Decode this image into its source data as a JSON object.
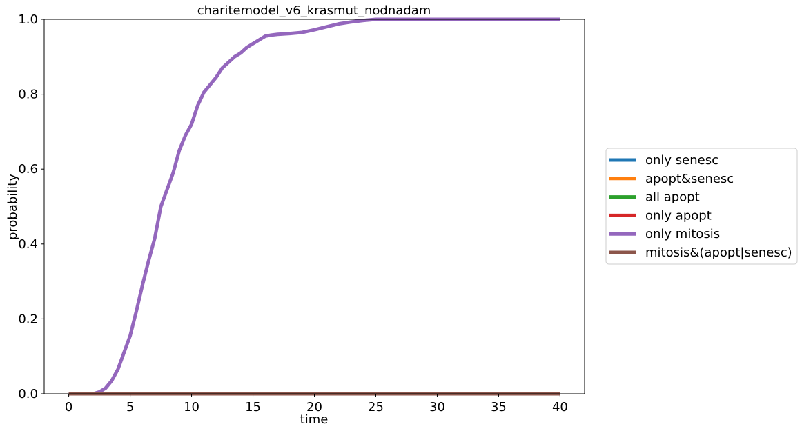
{
  "chart_data": {
    "type": "line",
    "title": "charitemodel_v6_krasmut_nodnadam",
    "xlabel": "time",
    "ylabel": "probability",
    "xlim": [
      -2,
      42
    ],
    "ylim": [
      0,
      1
    ],
    "xticks": [
      "0",
      "5",
      "10",
      "15",
      "20",
      "25",
      "30",
      "35",
      "40"
    ],
    "yticks": [
      "0.0",
      "0.2",
      "0.4",
      "0.6",
      "0.8",
      "1.0"
    ],
    "grid": false,
    "legend_position": "right-outside",
    "series": [
      {
        "name": "only senesc",
        "color": "#1f77b4",
        "x": [
          0,
          40
        ],
        "y": [
          0,
          0
        ]
      },
      {
        "name": "apopt&senesc",
        "color": "#ff7f0e",
        "x": [
          0,
          40
        ],
        "y": [
          0,
          0
        ]
      },
      {
        "name": "all apopt",
        "color": "#2ca02c",
        "x": [
          0,
          40
        ],
        "y": [
          0,
          0
        ]
      },
      {
        "name": "only apopt",
        "color": "#d62728",
        "x": [
          0,
          40
        ],
        "y": [
          0,
          0
        ]
      },
      {
        "name": "only mitosis",
        "color": "#9467bd",
        "x": [
          0,
          2.0,
          2.5,
          3.0,
          3.5,
          4.0,
          4.5,
          5.0,
          5.5,
          6.0,
          6.5,
          7.0,
          7.5,
          8.0,
          8.5,
          9.0,
          9.5,
          10.0,
          10.5,
          11.0,
          11.5,
          12.0,
          12.5,
          13.0,
          13.5,
          14.0,
          14.5,
          15.0,
          15.5,
          16.0,
          16.5,
          17.0,
          18.0,
          19.0,
          20.0,
          21.0,
          22.0,
          23.0,
          24.0,
          25.0,
          30.0,
          35.0,
          40.0
        ],
        "y": [
          0,
          0,
          0.005,
          0.015,
          0.035,
          0.065,
          0.11,
          0.155,
          0.22,
          0.29,
          0.355,
          0.415,
          0.5,
          0.545,
          0.59,
          0.65,
          0.69,
          0.72,
          0.77,
          0.805,
          0.825,
          0.845,
          0.87,
          0.885,
          0.9,
          0.91,
          0.925,
          0.935,
          0.945,
          0.955,
          0.958,
          0.96,
          0.962,
          0.965,
          0.972,
          0.98,
          0.988,
          0.993,
          0.997,
          1.0,
          1.0,
          1.0,
          1.0
        ]
      },
      {
        "name": "mitosis&(apopt|senesc)",
        "color": "#8c564b",
        "x": [
          0,
          40
        ],
        "y": [
          0,
          0
        ]
      }
    ]
  }
}
